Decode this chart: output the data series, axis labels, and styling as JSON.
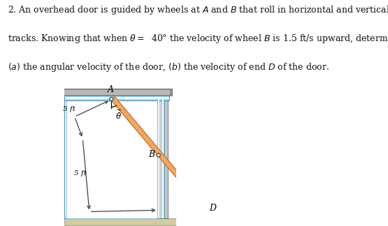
{
  "bg_color": "#ffffff",
  "theta_deg": 40,
  "door_color_face": "#f0a868",
  "door_color_edge": "#c87830",
  "floor_color": "#d4cba0",
  "floor_edge": "#aaa890",
  "track_light": "#add8e6",
  "track_mid": "#88bbd4",
  "track_dark": "#5090b0",
  "wall_gray_dark": "#909090",
  "wall_gray_mid": "#b8b8b8",
  "wall_gray_light": "#d0d0d0",
  "wall_bg_gray": "#c8c8c8",
  "wheel_face": "#ffffff",
  "wheel_edge": "#606060",
  "text_color": "#000000",
  "line_color": "#404040",
  "title_line1": "2. An overhead door is guided by wheels at ",
  "title_line2": "tracks. Knowing that when ",
  "title_line3": "(",
  "label_A": "A",
  "label_B": "B",
  "label_D": "D",
  "label_5ft": "5 ft",
  "label_theta": "θ"
}
